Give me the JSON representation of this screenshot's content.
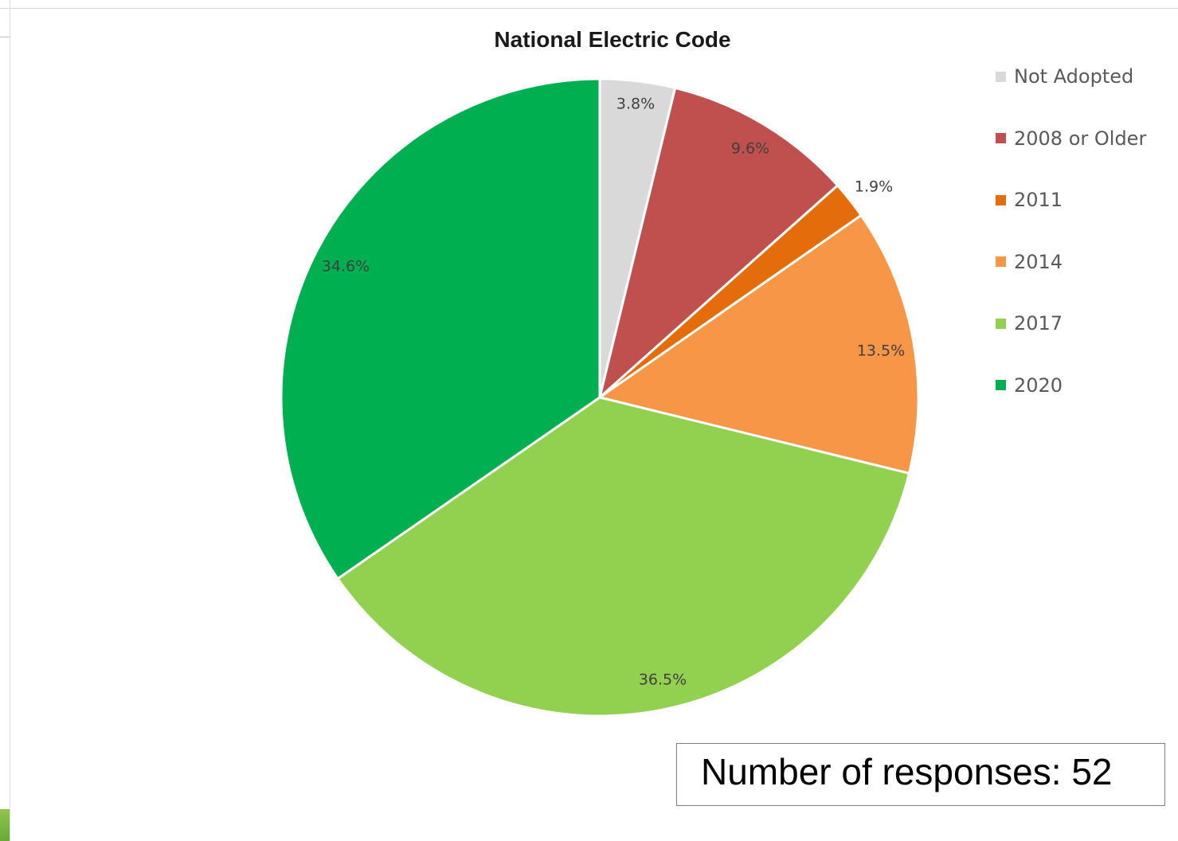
{
  "chart_data": {
    "type": "pie",
    "title": "National Electric Code",
    "categories": [
      "Not Adopted",
      "2008 or Older",
      "2011",
      "2014",
      "2017",
      "2020"
    ],
    "values": [
      3.8,
      9.6,
      1.9,
      13.5,
      36.5,
      34.6
    ],
    "value_labels": [
      "3.8%",
      "9.6%",
      "1.9%",
      "13.5%",
      "36.5%",
      "34.6%"
    ],
    "colors": [
      "#d9d9d9",
      "#c0504d",
      "#e46c0a",
      "#f79646",
      "#92d050",
      "#00b050"
    ],
    "legend_position": "right",
    "start_angle": "12 o'clock",
    "direction": "clockwise"
  },
  "annotation": {
    "responses_text": "Number of responses: 52"
  }
}
